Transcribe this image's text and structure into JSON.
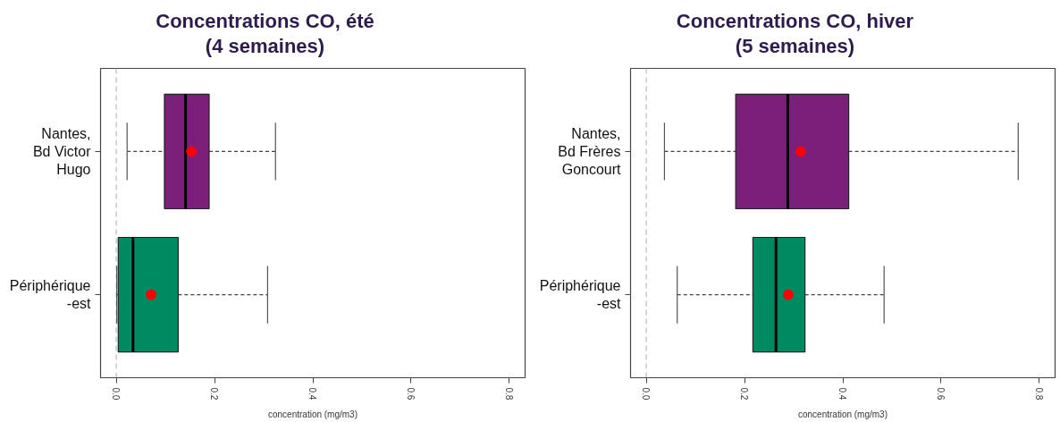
{
  "chart_data": [
    {
      "type": "box",
      "orientation": "horizontal",
      "title": "Concentrations CO, été\n(4 semaines)",
      "xlabel": "concentration (mg/m3)",
      "categories": [
        "Nantes,\nBd Victor\nHugo",
        "Périphérique\n-est"
      ],
      "colors": [
        "#7b1f7b",
        "#008a62"
      ],
      "boxes": [
        {
          "low": 0.022,
          "q1": 0.098,
          "median": 0.141,
          "q3": 0.189,
          "high": 0.324,
          "mean": 0.153
        },
        {
          "low": 0.001,
          "q1": 0.004,
          "median": 0.034,
          "q3": 0.126,
          "high": 0.308,
          "mean": 0.071
        }
      ],
      "xlim": [
        -0.032,
        0.832
      ],
      "xticks": [
        {
          "value": 0,
          "label": "0.0"
        },
        0.2,
        0.4,
        0.6,
        0.8
      ],
      "ref_lines": [
        {
          "axis": "x",
          "value": 0,
          "color": "#c8c8c8",
          "line_style": "dashed"
        }
      ],
      "grid": false
    },
    {
      "type": "box",
      "orientation": "horizontal",
      "title": "Concentrations CO, hiver\n(5 semaines)",
      "xlabel": "concentration (mg/m3)",
      "categories": [
        "Nantes,\nBd Frères\nGoncourt",
        "Périphérique\n-est"
      ],
      "colors": [
        "#7b1f7b",
        "#008a62"
      ],
      "boxes": [
        {
          "low": 0.037,
          "q1": 0.182,
          "median": 0.288,
          "q3": 0.412,
          "high": 0.757,
          "mean": 0.314
        },
        {
          "low": 0.063,
          "q1": 0.217,
          "median": 0.264,
          "q3": 0.323,
          "high": 0.484,
          "mean": 0.289
        }
      ],
      "xlim": [
        -0.032,
        0.832
      ],
      "xticks": [
        {
          "value": 0,
          "label": "0.0"
        },
        0.2,
        0.4,
        0.6,
        0.8
      ],
      "ref_lines": [
        {
          "axis": "x",
          "value": 0,
          "color": "#c8c8c8",
          "line_style": "dashed"
        }
      ],
      "grid": false
    }
  ]
}
